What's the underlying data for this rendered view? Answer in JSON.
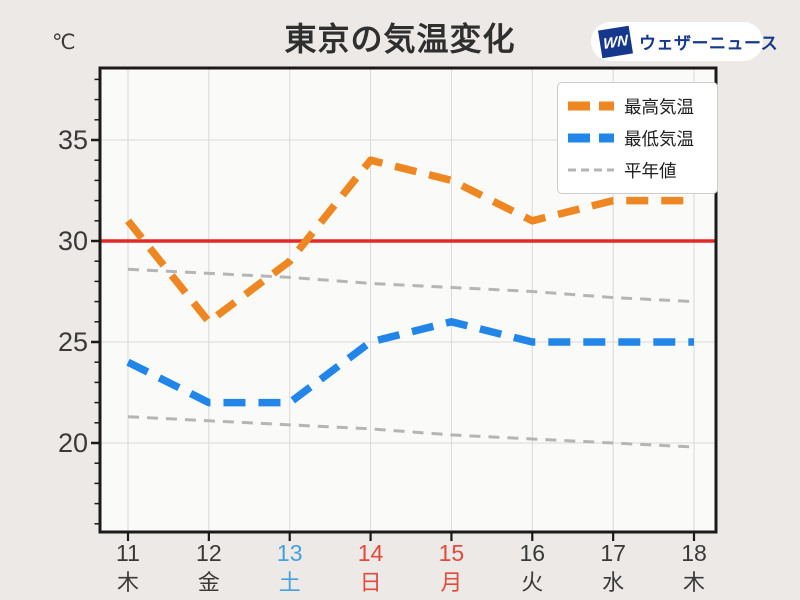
{
  "header": {
    "unit_label": "℃",
    "title": "東京の気温変化",
    "logo": {
      "mark": "WN",
      "text": "ウェザーニュース"
    }
  },
  "legend": [
    {
      "label": "最高気温",
      "color": "#ee8722",
      "style": "dashed-thick"
    },
    {
      "label": "最低気温",
      "color": "#2286e8",
      "style": "dashed-thick"
    },
    {
      "label": "平年値",
      "color": "#b5b5b5",
      "style": "dashed-thin"
    }
  ],
  "chart_data": {
    "type": "line",
    "title": "東京の気温変化",
    "ylabel": "℃",
    "x": [
      11,
      12,
      13,
      14,
      15,
      16,
      17,
      18
    ],
    "x_labels": [
      {
        "day": "11",
        "weekday": "木",
        "color": "#3a3a3a"
      },
      {
        "day": "12",
        "weekday": "金",
        "color": "#3a3a3a"
      },
      {
        "day": "13",
        "weekday": "土",
        "color": "#45a1dc"
      },
      {
        "day": "14",
        "weekday": "日",
        "color": "#e2493f"
      },
      {
        "day": "15",
        "weekday": "月",
        "color": "#e2493f"
      },
      {
        "day": "16",
        "weekday": "火",
        "color": "#3a3a3a"
      },
      {
        "day": "17",
        "weekday": "水",
        "color": "#3a3a3a"
      },
      {
        "day": "18",
        "weekday": "木",
        "color": "#3a3a3a"
      }
    ],
    "series": [
      {
        "name": "平年値(最高)",
        "values": [
          28.6,
          28.4,
          28.2,
          27.9,
          27.7,
          27.5,
          27.2,
          27.0
        ],
        "color": "#b5b5b5",
        "style": "dashed-thin"
      },
      {
        "name": "平年値(最低)",
        "values": [
          21.3,
          21.1,
          20.9,
          20.7,
          20.4,
          20.2,
          20.0,
          19.8
        ],
        "color": "#b5b5b5",
        "style": "dashed-thin"
      },
      {
        "name": "最低気温",
        "values": [
          24,
          22,
          22,
          25,
          26,
          25,
          25,
          25
        ],
        "color": "#2286e8",
        "style": "dashed-thick"
      },
      {
        "name": "最高気温",
        "values": [
          31,
          26,
          29,
          34,
          33,
          31,
          32,
          32
        ],
        "color": "#ee8722",
        "style": "dashed-thick"
      }
    ],
    "reference_line": {
      "value": 30,
      "color": "#e62728"
    },
    "yticks": [
      20,
      25,
      30,
      35
    ],
    "ylim": [
      15.6,
      38.6
    ],
    "xlim": [
      10.65,
      18.27
    ],
    "grid": true,
    "legend_position": "top-right",
    "colors": {
      "background": "#ece9e6",
      "plot_background": "#fafaf9",
      "gridline": "#d9d9d9",
      "axis": "#1a1a1a",
      "tick_label": "#3a3a3a"
    }
  }
}
